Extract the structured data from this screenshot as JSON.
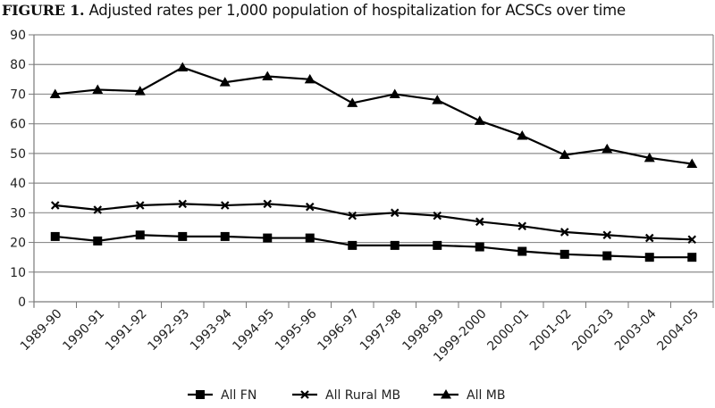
{
  "chart_data": {
    "type": "line",
    "title_prefix": "FIGURE 1.",
    "title": "Adjusted rates per 1,000 population of hospitalization for ACSCs over time",
    "xlabel": "",
    "ylabel": "",
    "ylim": [
      0,
      90
    ],
    "yticks": [
      0,
      10,
      20,
      30,
      40,
      50,
      60,
      70,
      80,
      90
    ],
    "grid": true,
    "legend_position": "bottom",
    "categories": [
      "1989-90",
      "1990-91",
      "1991-92",
      "1992-93",
      "1993-94",
      "1994-95",
      "1995-96",
      "1996-97",
      "1997-98",
      "1998-99",
      "1999-2000",
      "2000-01",
      "2001-02",
      "2002-03",
      "2003-04",
      "2004-05"
    ],
    "series": [
      {
        "name": "All FN",
        "marker": "square",
        "values": [
          22,
          20.5,
          22.5,
          22,
          22,
          21.5,
          21.5,
          19,
          19,
          19,
          18.5,
          17,
          16,
          15.5,
          15,
          15
        ]
      },
      {
        "name": "All Rural MB",
        "marker": "x",
        "values": [
          32.5,
          31,
          32.5,
          33,
          32.5,
          33,
          32,
          29,
          30,
          29,
          27,
          25.5,
          23.5,
          22.5,
          21.5,
          21
        ]
      },
      {
        "name": "All MB",
        "marker": "triangle",
        "values": [
          70,
          71.5,
          71,
          79,
          74,
          76,
          75,
          67,
          70,
          68,
          61,
          56,
          49.5,
          51.5,
          48.5,
          46.5
        ]
      }
    ],
    "colors": {
      "line": "#000000",
      "grid": "#8c8c8c",
      "axis": "#7a7a7a"
    }
  }
}
